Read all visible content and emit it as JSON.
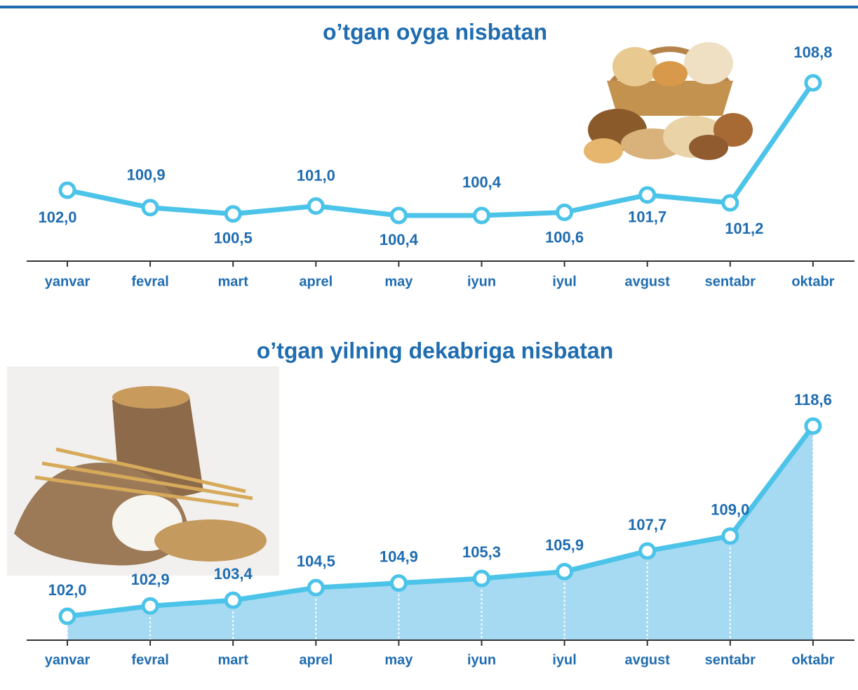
{
  "chart_data": [
    {
      "type": "line",
      "title": "o’tgan oyga nisbatan",
      "categories": [
        "yanvar",
        "fevral",
        "mart",
        "aprel",
        "may",
        "iyun",
        "iyul",
        "avgust",
        "sentabr",
        "oktabr"
      ],
      "values": [
        102.0,
        100.9,
        100.5,
        101.0,
        100.4,
        100.4,
        100.6,
        101.7,
        101.2,
        108.8
      ],
      "value_labels": [
        "102,0",
        "100,9",
        "100,5",
        "101,0",
        "100,4",
        "100,4",
        "100,6",
        "101,7",
        "101,2",
        "108,8"
      ],
      "color": "#4cc3e8"
    },
    {
      "type": "area",
      "title": "o’tgan yilning dekabriga nisbatan",
      "categories": [
        "yanvar",
        "fevral",
        "mart",
        "aprel",
        "may",
        "iyun",
        "iyul",
        "avgust",
        "sentabr",
        "oktabr"
      ],
      "values": [
        102.0,
        102.9,
        103.4,
        104.5,
        104.9,
        105.3,
        105.9,
        107.7,
        109.0,
        118.6
      ],
      "value_labels": [
        "102,0",
        "102,9",
        "103,4",
        "104,5",
        "104,9",
        "105,3",
        "105,9",
        "107,7",
        "109,0",
        "118,6"
      ],
      "color": "#4cc3e8"
    }
  ]
}
